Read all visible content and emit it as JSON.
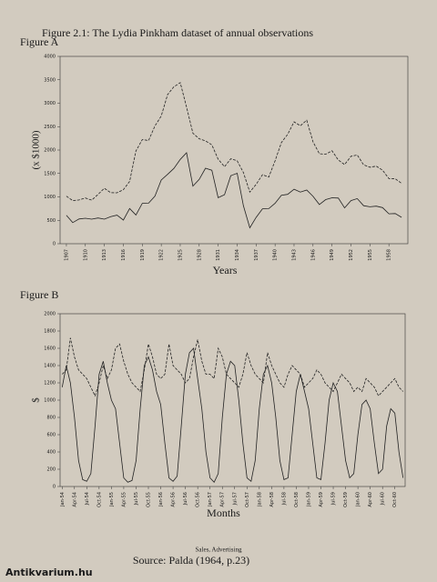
{
  "title": "Figure 2.1: The Lydia Pinkham dataset of annual observations",
  "legend_text": "Sales, Advertising",
  "source": "Source: Palda (1964, p.23)",
  "watermark": "Antikvarium.hu",
  "chart_data": [
    {
      "type": "line",
      "title": "Figure A",
      "ylabel": "(x $1000)",
      "xlabel": "Years",
      "x": [
        1907,
        1908,
        1909,
        1910,
        1911,
        1912,
        1913,
        1914,
        1915,
        1916,
        1917,
        1918,
        1919,
        1920,
        1921,
        1922,
        1923,
        1924,
        1925,
        1926,
        1927,
        1928,
        1929,
        1930,
        1931,
        1932,
        1933,
        1934,
        1935,
        1936,
        1937,
        1938,
        1939,
        1940,
        1941,
        1942,
        1943,
        1944,
        1945,
        1946,
        1947,
        1948,
        1949,
        1950,
        1951,
        1952,
        1953,
        1954,
        1955,
        1956,
        1957,
        1958,
        1959,
        1960
      ],
      "xlim": [
        1906,
        1961
      ],
      "xticks": [
        1907,
        1910,
        1913,
        1916,
        1919,
        1922,
        1925,
        1928,
        1931,
        1934,
        1937,
        1940,
        1943,
        1946,
        1949,
        1952,
        1955,
        1958
      ],
      "ylim": [
        0,
        4000
      ],
      "yticks": [
        0,
        500,
        1000,
        1500,
        2000,
        2500,
        3000,
        3500,
        4000
      ],
      "series": [
        {
          "name": "Sales",
          "color": "#222222",
          "line_style": "dashed",
          "values": [
            1016,
            921,
            934,
            976,
            930,
            1052,
            1184,
            1089,
            1087,
            1154,
            1330,
            1980,
            2223,
            2203,
            2514,
            2726,
            3185,
            3352,
            3438,
            2917,
            2359,
            2240,
            2196,
            2111,
            1806,
            1644,
            1814,
            1770,
            1518,
            1103,
            1266,
            1473,
            1423,
            1767,
            2161,
            2336,
            2602,
            2518,
            2637,
            2177,
            1920,
            1910,
            1984,
            1787,
            1689,
            1866,
            1896,
            1684,
            1633,
            1657,
            1569,
            1390,
            1387,
            1289
          ]
        },
        {
          "name": "Advertising",
          "color": "#222222",
          "line_style": "solid",
          "values": [
            608,
            451,
            529,
            543,
            525,
            549,
            525,
            578,
            609,
            504,
            752,
            613,
            862,
            866,
            1016,
            1360,
            1482,
            1608,
            1800,
            1941,
            1229,
            1373,
            1611,
            1568,
            983,
            1046,
            1453,
            1504,
            807,
            339,
            562,
            745,
            749,
            862,
            1034,
            1054,
            1164,
            1102,
            1145,
            1012,
            836,
            941,
            981,
            974,
            766,
            920,
            964,
            811,
            789,
            802,
            770,
            639,
            644,
            564
          ]
        }
      ]
    },
    {
      "type": "line",
      "title": "Figure B",
      "ylabel": "$",
      "xlabel": "Months",
      "categories": [
        "Jan-54",
        null,
        null,
        "Apr-54",
        null,
        null,
        "Jul-54",
        null,
        null,
        "Oct-54",
        null,
        null,
        "Jan-55",
        null,
        null,
        "Apr-55",
        null,
        null,
        "Jul-55",
        null,
        null,
        "Oct-55",
        null,
        null,
        "Jan-56",
        null,
        null,
        "Apr-56",
        null,
        null,
        "Jul-56",
        null,
        null,
        "Oct-56",
        null,
        null,
        "Jan-57",
        null,
        null,
        "Apr-57",
        null,
        null,
        "Jul-57",
        null,
        null,
        "Oct-57",
        null,
        null,
        "Jan-58",
        null,
        null,
        "Apr-58",
        null,
        null,
        "Jul-58",
        null,
        null,
        "Oct-58",
        null,
        null,
        "Jan-59",
        null,
        null,
        "Apr-59",
        null,
        null,
        "Jul-59",
        null,
        null,
        "Oct-59",
        null,
        null,
        "Jan-60",
        null,
        null,
        "Apr-60",
        null,
        null,
        "Jul-60",
        null,
        null,
        "Oct-60",
        null,
        null
      ],
      "ylim": [
        0,
        2000
      ],
      "yticks": [
        0,
        200,
        400,
        600,
        800,
        1000,
        1200,
        1400,
        1600,
        1800,
        2000
      ],
      "series": [
        {
          "name": "Sales",
          "color": "#222222",
          "line_style": "dashed",
          "values": [
            1300,
            1350,
            1720,
            1500,
            1350,
            1300,
            1250,
            1150,
            1050,
            1200,
            1400,
            1250,
            1350,
            1600,
            1650,
            1450,
            1300,
            1200,
            1150,
            1100,
            1350,
            1650,
            1500,
            1300,
            1250,
            1300,
            1650,
            1400,
            1350,
            1300,
            1200,
            1250,
            1500,
            1700,
            1450,
            1300,
            1300,
            1250,
            1600,
            1500,
            1300,
            1250,
            1200,
            1150,
            1300,
            1550,
            1400,
            1300,
            1250,
            1200,
            1550,
            1400,
            1300,
            1200,
            1150,
            1300,
            1400,
            1350,
            1300,
            1150,
            1200,
            1250,
            1350,
            1300,
            1200,
            1150,
            1100,
            1200,
            1300,
            1250,
            1200,
            1100,
            1150,
            1100,
            1250,
            1200,
            1150,
            1050,
            1100,
            1150,
            1200,
            1250,
            1150,
            1100
          ]
        },
        {
          "name": "Advertising",
          "color": "#222222",
          "line_style": "solid",
          "values": [
            1150,
            1400,
            1200,
            800,
            300,
            80,
            60,
            150,
            700,
            1300,
            1450,
            1200,
            1000,
            900,
            500,
            100,
            50,
            70,
            300,
            900,
            1400,
            1500,
            1350,
            1100,
            950,
            500,
            100,
            60,
            120,
            700,
            1300,
            1550,
            1600,
            1250,
            900,
            400,
            100,
            50,
            150,
            800,
            1300,
            1450,
            1400,
            1000,
            500,
            100,
            60,
            300,
            900,
            1300,
            1400,
            1200,
            800,
            300,
            80,
            100,
            600,
            1100,
            1300,
            1100,
            900,
            500,
            100,
            80,
            500,
            1000,
            1200,
            1100,
            700,
            300,
            100,
            150,
            600,
            950,
            1000,
            900,
            500,
            150,
            200,
            700,
            900,
            850,
            400,
            100
          ]
        }
      ]
    }
  ]
}
